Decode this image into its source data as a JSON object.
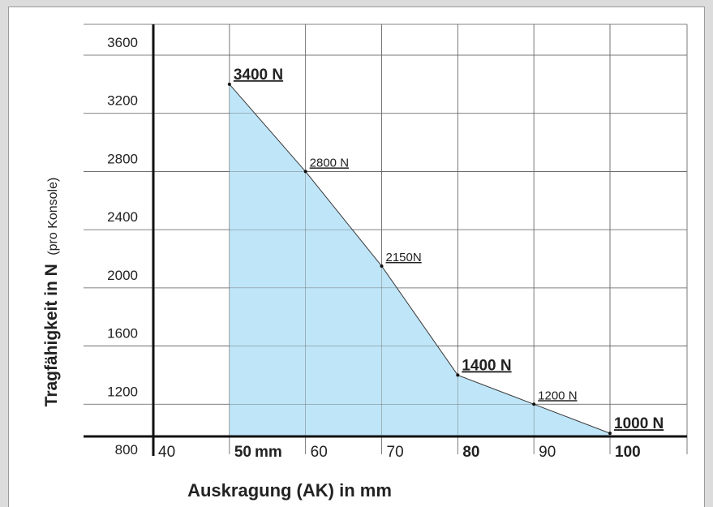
{
  "chart_data": {
    "type": "area",
    "title": "",
    "ylabel_main": "Tragfähigkeit in N",
    "ylabel_note": "(pro Konsole)",
    "xlabel": "Auskragung (AK) in mm",
    "y_ticks": [
      3600,
      3200,
      2800,
      2400,
      2000,
      1600,
      1200,
      800
    ],
    "ylim": [
      800,
      3600
    ],
    "x_ticks": [
      {
        "value": 40,
        "label": "40",
        "bold": false
      },
      {
        "value": 50,
        "label": "50",
        "unit": "mm",
        "bold": true
      },
      {
        "value": 60,
        "label": "60",
        "bold": false
      },
      {
        "value": 70,
        "label": "70",
        "bold": false
      },
      {
        "value": 80,
        "label": "80",
        "bold": true
      },
      {
        "value": 90,
        "label": "90",
        "bold": false
      },
      {
        "value": 100,
        "label": "100",
        "bold": true
      }
    ],
    "xlim": [
      40,
      100
    ],
    "grid": true,
    "fill_color": "#bfe5f8",
    "line_color": "#3a3a3a",
    "points": [
      {
        "x": 50,
        "y": 3400,
        "label": "3400 N",
        "bold": true
      },
      {
        "x": 60,
        "y": 2800,
        "label": "2800 N",
        "bold": false
      },
      {
        "x": 70,
        "y": 2150,
        "label": "2150N",
        "bold": false
      },
      {
        "x": 80,
        "y": 1400,
        "label": "1400 N",
        "bold": true
      },
      {
        "x": 90,
        "y": 1200,
        "label": "1200 N",
        "bold": false
      },
      {
        "x": 100,
        "y": 1000,
        "label": "1000 N",
        "bold": true
      }
    ]
  }
}
